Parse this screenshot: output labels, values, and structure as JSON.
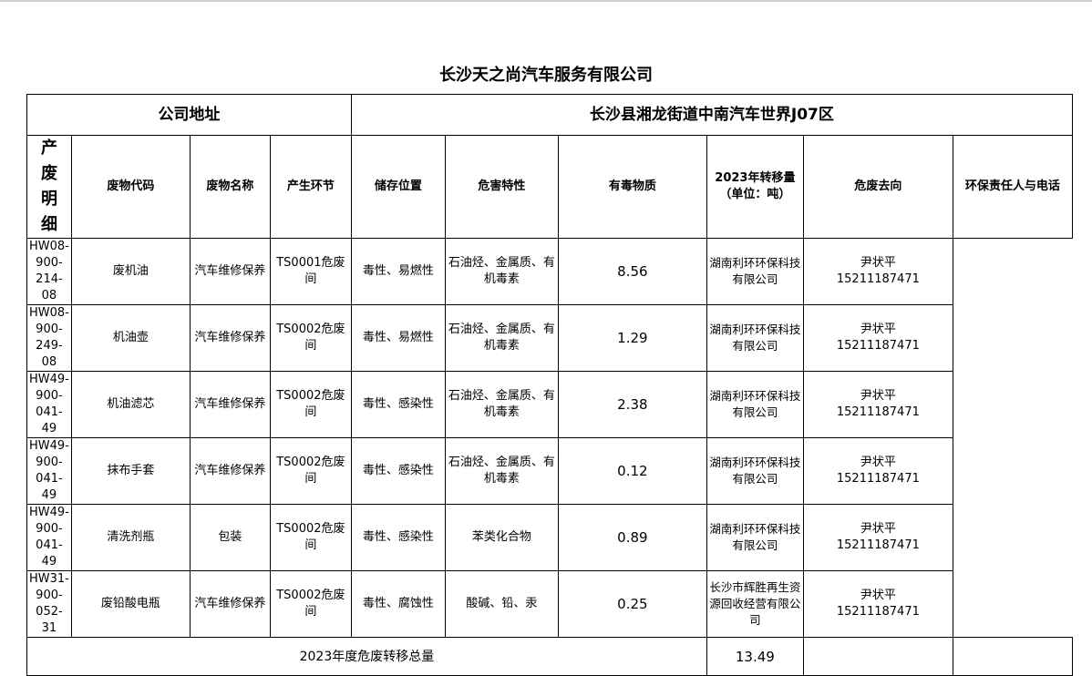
{
  "title": "长沙天之尚汽车服务有限公司",
  "address_label": "公司地址",
  "address_value": "长沙县湘龙街道中南汽车世界J07区",
  "side_label": [
    "产",
    "废",
    "明",
    "细"
  ],
  "headers": [
    "废物代码",
    "废物名称",
    "产生环节",
    "储存位置",
    "危害特性",
    "有毒物质",
    "2023年转移量",
    "（单位：吨）",
    "危废去向",
    "环保责任人与电话"
  ],
  "rows": [
    {
      "code": "HW08-900-214-08",
      "name": "废机油",
      "stage": "汽车维修保养",
      "storage": "TS0001危废间",
      "hazard": "毒性、易燃性",
      "toxic": "石油烃、金属质、有机毒素",
      "amount": "8.56",
      "dest": "湖南利环环保科技有限公司",
      "person": "尹状平",
      "phone": "15211187471"
    },
    {
      "code": "HW08-900-249-08",
      "name": "机油壶",
      "stage": "汽车维修保养",
      "storage": "TS0002危废间",
      "hazard": "毒性、易燃性",
      "toxic": "石油烃、金属质、有机毒素",
      "amount": "1.29",
      "dest": "湖南利环环保科技有限公司",
      "person": "尹状平",
      "phone": "15211187471"
    },
    {
      "code": "HW49-900-041-49",
      "name": "机油滤芯",
      "stage": "汽车维修保养",
      "storage": "TS0002危废间",
      "hazard": "毒性、感染性",
      "toxic": "石油烃、金属质、有机毒素",
      "amount": "2.38",
      "dest": "湖南利环环保科技有限公司",
      "person": "尹状平",
      "phone": "15211187471"
    },
    {
      "code": "HW49-900-041-49",
      "name": "抹布手套",
      "stage": "汽车维修保养",
      "storage": "TS0002危废间",
      "hazard": "毒性、感染性",
      "toxic": "石油烃、金属质、有机毒素",
      "amount": "0.12",
      "dest": "湖南利环环保科技有限公司",
      "person": "尹状平",
      "phone": "15211187471"
    },
    {
      "code": "HW49-900-041-49",
      "name": "清洗剂瓶",
      "stage": "包装",
      "storage": "TS0002危废间",
      "hazard": "毒性、感染性",
      "toxic": "苯类化合物",
      "amount": "0.89",
      "dest": "湖南利环环保科技有限公司",
      "person": "尹状平",
      "phone": "15211187471"
    },
    {
      "code": "HW31-900-052-31",
      "name": "废铅酸电瓶",
      "stage": "汽车维修保养",
      "storage": "TS0002危废间",
      "hazard": "毒性、腐蚀性",
      "toxic": "酸碱、铅、汞",
      "amount": "0.25",
      "dest": "长沙市辉胜再生资源回收经营有限公司",
      "person": "尹状平",
      "phone": "15211187471"
    }
  ],
  "total_label": "2023年度危废转移总量",
  "total_value": "13.49"
}
